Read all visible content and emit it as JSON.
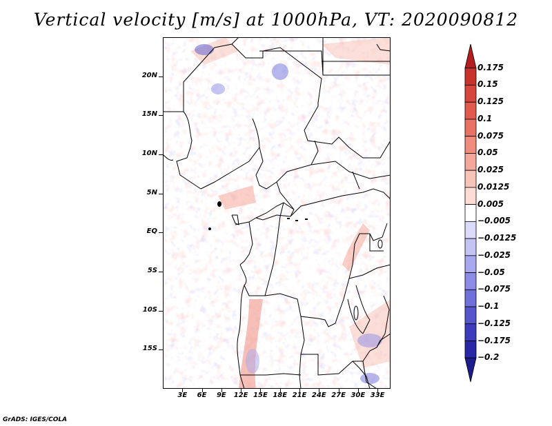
{
  "title": "Vertical velocity [m/s] at 1000hPa, VT: 2020090812",
  "credit": "GrADS: IGES/COLA",
  "map": {
    "lat_ticks": [
      {
        "label": "20N",
        "value": 20
      },
      {
        "label": "15N",
        "value": 15
      },
      {
        "label": "10N",
        "value": 10
      },
      {
        "label": "5N",
        "value": 5
      },
      {
        "label": "EQ",
        "value": 0
      },
      {
        "label": "5S",
        "value": -5
      },
      {
        "label": "10S",
        "value": -10
      },
      {
        "label": "15S",
        "value": -15
      }
    ],
    "lon_ticks": [
      {
        "label": "3E",
        "value": 3
      },
      {
        "label": "6E",
        "value": 6
      },
      {
        "label": "9E",
        "value": 9
      },
      {
        "label": "12E",
        "value": 12
      },
      {
        "label": "15E",
        "value": 15
      },
      {
        "label": "18E",
        "value": 18
      },
      {
        "label": "21E",
        "value": 21
      },
      {
        "label": "24E",
        "value": 24
      },
      {
        "label": "27E",
        "value": 27
      },
      {
        "label": "30E",
        "value": 30
      },
      {
        "label": "33E",
        "value": 33
      }
    ],
    "lon_range": [
      0,
      35
    ],
    "lat_range": [
      -20,
      25
    ]
  },
  "colorbar": {
    "levels": [
      "0.175",
      "0.15",
      "0.125",
      "0.1",
      "0.075",
      "0.05",
      "0.025",
      "0.0125",
      "0.005",
      "−0.005",
      "−0.0125",
      "−0.025",
      "−0.05",
      "−0.075",
      "−0.1",
      "−0.125",
      "−0.175",
      "−0.2"
    ],
    "colors": [
      "#b41e1e",
      "#c8322c",
      "#d7463e",
      "#e05a50",
      "#e87264",
      "#ef8c7e",
      "#f4a89b",
      "#f8c4b8",
      "#fcdcd4",
      "#ffffff",
      "#dcdcfa",
      "#c4c4f4",
      "#a8a8ee",
      "#8c8ce6",
      "#7070dc",
      "#5656cc",
      "#3c3cbc",
      "#2828a8",
      "#1c1c8c"
    ]
  }
}
